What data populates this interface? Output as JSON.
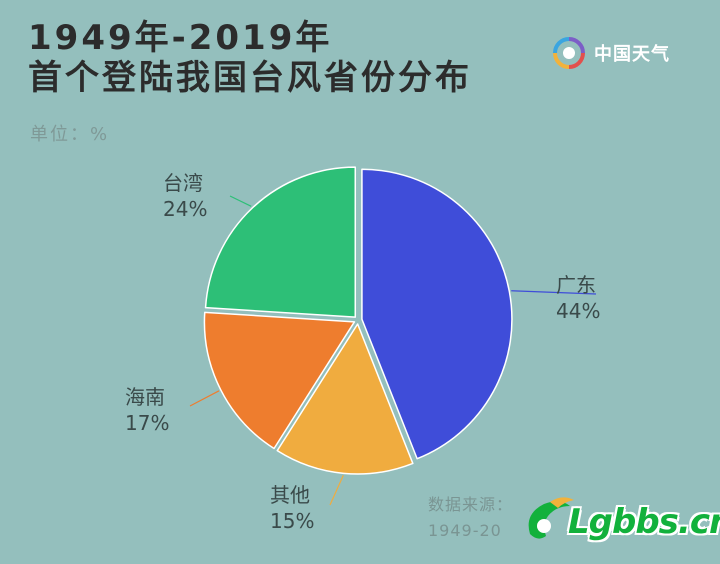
{
  "title_lines": [
    "1949年-2019年",
    "首个登陆我国台风省份分布"
  ],
  "unit_label": "单位：%",
  "brand": {
    "name": "中国天气"
  },
  "source": {
    "label": "数据来源：",
    "period": "1949-20"
  },
  "site_logo": {
    "text": "Lgbbs.cn"
  },
  "chart_data": {
    "type": "pie",
    "title": "1949年-2019年 首个登陆我国台风省份分布",
    "unit": "%",
    "slices": [
      {
        "name": "广东",
        "value": 44,
        "label": "44%",
        "color": "#3f4dd9"
      },
      {
        "name": "其他",
        "value": 15,
        "label": "15%",
        "color": "#f0ac3f"
      },
      {
        "name": "海南",
        "value": 17,
        "label": "17%",
        "color": "#ee7d2e"
      },
      {
        "name": "台湾",
        "value": 24,
        "label": "24%",
        "color": "#2dbf77"
      }
    ]
  }
}
